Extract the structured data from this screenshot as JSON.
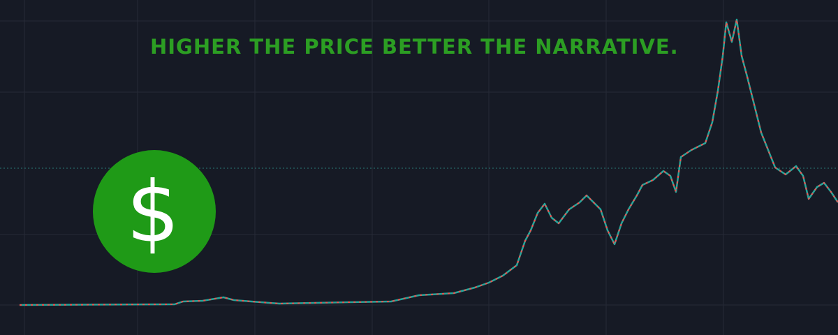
{
  "headline": "HIGHER THE PRICE BETTER THE NARRATIVE.",
  "icon": "$"
}
